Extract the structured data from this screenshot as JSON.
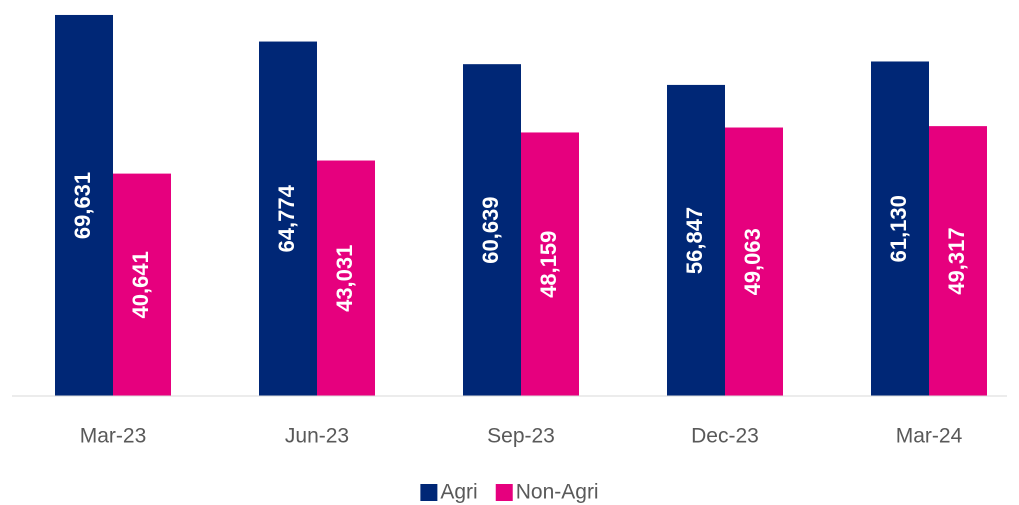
{
  "chart_data": {
    "type": "bar",
    "categories": [
      "Mar-23",
      "Jun-23",
      "Sep-23",
      "Dec-23",
      "Mar-24"
    ],
    "series": [
      {
        "name": "Agri",
        "color": "#002776",
        "values": [
          69631,
          64774,
          60639,
          56847,
          61130
        ],
        "value_labels": [
          "69,631",
          "64,774",
          "60,639",
          "56,847",
          "61,130"
        ]
      },
      {
        "name": "Non-Agri",
        "color": "#e6007e",
        "values": [
          40641,
          43031,
          48159,
          49063,
          49317
        ],
        "value_labels": [
          "40,641",
          "43,031",
          "48,159",
          "49,063",
          "49,317"
        ]
      }
    ],
    "ylim": [
      0,
      72000
    ],
    "legend": "bottom"
  }
}
